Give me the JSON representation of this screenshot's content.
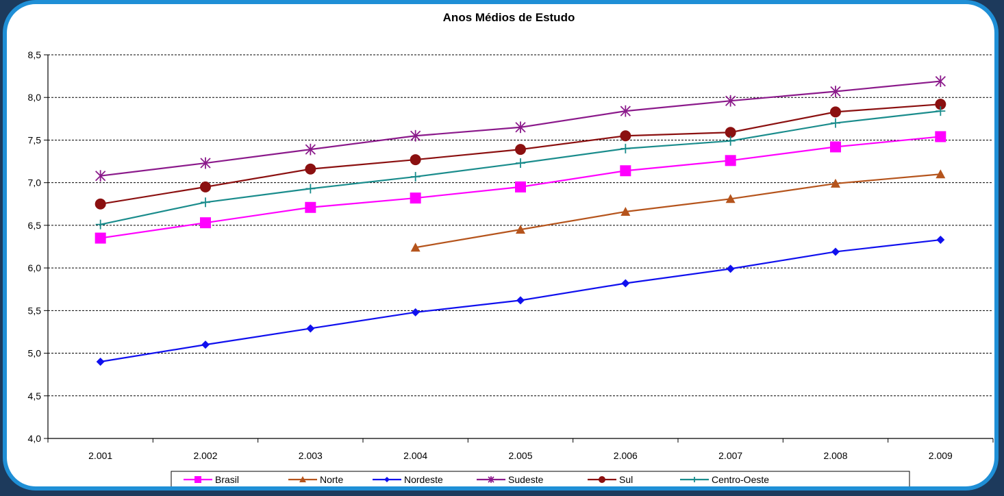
{
  "colors": {
    "background": "#1d3a5c",
    "frame_border": "#1f8fd6",
    "plot_background": "#ffffff",
    "gridline": "#000000"
  },
  "chart_data": {
    "type": "line",
    "title": "Anos Médios de Estudo",
    "xlabel": "",
    "ylabel": "",
    "categories": [
      "2.001",
      "2.002",
      "2.003",
      "2.004",
      "2.005",
      "2.006",
      "2.007",
      "2.008",
      "2.009"
    ],
    "ylim": [
      4.0,
      8.5
    ],
    "yticks": [
      4.0,
      4.5,
      5.0,
      5.5,
      6.0,
      6.5,
      7.0,
      7.5,
      8.0,
      8.5
    ],
    "ytick_labels": [
      "4,0",
      "4,5",
      "5,0",
      "5,5",
      "6,0",
      "6,5",
      "7,0",
      "7,5",
      "8,0",
      "8,5"
    ],
    "grid": "horizontal dashed",
    "legend": "bottom",
    "series": [
      {
        "name": "Brasil",
        "color": "#ff00ff",
        "marker": "square",
        "values": [
          6.35,
          6.53,
          6.71,
          6.82,
          6.95,
          7.14,
          7.26,
          7.42,
          7.54
        ]
      },
      {
        "name": "Norte",
        "color": "#b5541c",
        "marker": "triangle",
        "values": [
          null,
          null,
          null,
          6.24,
          6.45,
          6.66,
          6.81,
          6.99,
          7.1
        ]
      },
      {
        "name": "Nordeste",
        "color": "#1010ee",
        "marker": "diamond",
        "values": [
          4.9,
          5.1,
          5.29,
          5.48,
          5.62,
          5.82,
          5.99,
          6.19,
          6.33
        ]
      },
      {
        "name": "Sudeste",
        "color": "#8b1a8b",
        "marker": "star",
        "values": [
          7.08,
          7.23,
          7.39,
          7.55,
          7.65,
          7.84,
          7.96,
          8.07,
          8.19
        ]
      },
      {
        "name": "Sul",
        "color": "#8b1010",
        "marker": "circle",
        "values": [
          6.75,
          6.95,
          7.16,
          7.27,
          7.39,
          7.55,
          7.59,
          7.83,
          7.92
        ]
      },
      {
        "name": "Centro-Oeste",
        "color": "#1a8c8c",
        "marker": "plus",
        "values": [
          6.51,
          6.77,
          6.93,
          7.07,
          7.23,
          7.4,
          7.49,
          7.7,
          7.84
        ]
      }
    ]
  }
}
